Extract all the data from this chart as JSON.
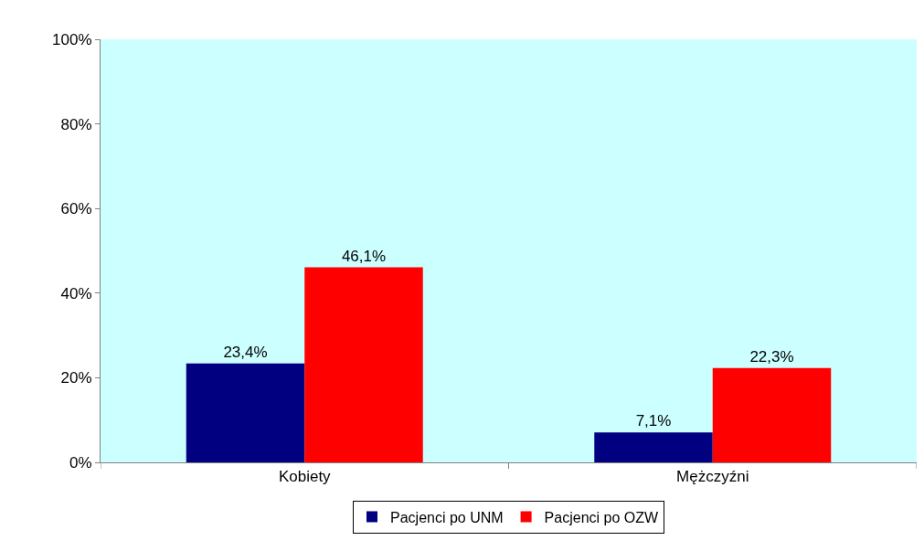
{
  "chart_data": {
    "type": "bar",
    "categories": [
      "Kobiety",
      "Mężczyźni"
    ],
    "series": [
      {
        "name": "Pacjenci po UNM",
        "color": "#000080",
        "values": [
          23.4,
          7.1
        ],
        "value_labels": [
          "23,4%",
          "7,1%"
        ]
      },
      {
        "name": "Pacjenci po OZW",
        "color": "#ff0000",
        "values": [
          46.1,
          22.3
        ],
        "value_labels": [
          "46,1%",
          "22,3%"
        ]
      }
    ],
    "ylim": [
      0,
      100
    ],
    "yticks": [
      {
        "value": 0,
        "label": "0%"
      },
      {
        "value": 20,
        "label": "20%"
      },
      {
        "value": 40,
        "label": "40%"
      },
      {
        "value": 60,
        "label": "60%"
      },
      {
        "value": 80,
        "label": "80%"
      },
      {
        "value": 100,
        "label": "100%"
      }
    ],
    "grid": false,
    "legend": "bottom"
  }
}
